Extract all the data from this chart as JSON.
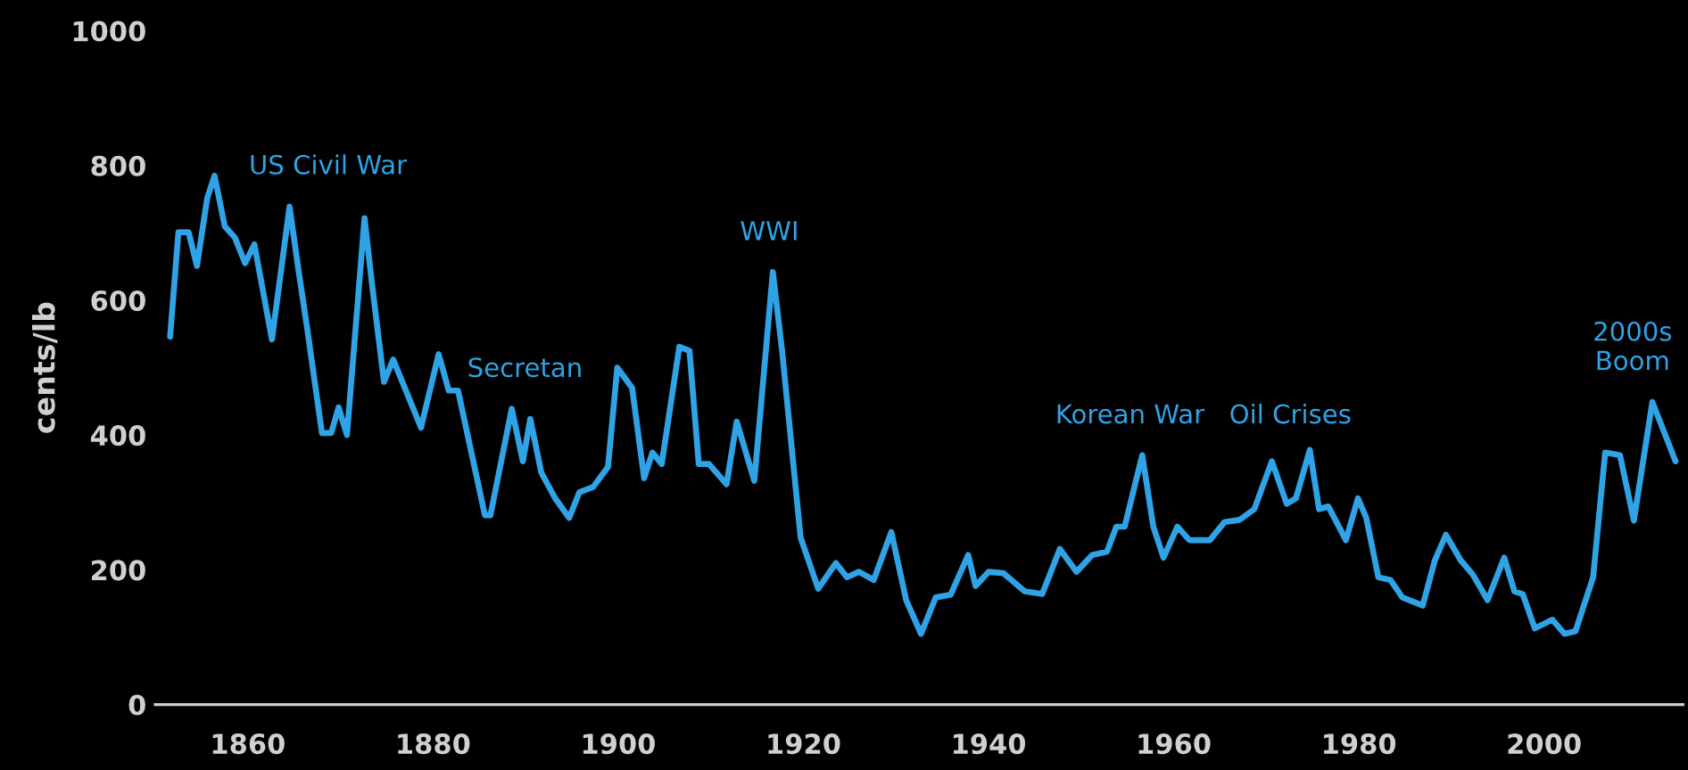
{
  "chart_data": {
    "type": "line",
    "ylabel": "cents/lb",
    "x": [
      1851.6,
      1852.5,
      1853.6,
      1854.5,
      1855.6,
      1856.4,
      1857.5,
      1858.6,
      1859.7,
      1860.7,
      1862.6,
      1864.5,
      1865.5,
      1866.4,
      1868,
      1869,
      1869.8,
      1870.7,
      1872.6,
      1873.4,
      1874.7,
      1875.7,
      1878.7,
      1880.6,
      1881.7,
      1882.7,
      1885.6,
      1886.2,
      1888.5,
      1889.7,
      1890.5,
      1891.7,
      1893.2,
      1894.7,
      1895.8,
      1897.3,
      1898.9,
      1899.9,
      1901.5,
      1902.8,
      1903.7,
      1904.7,
      1906.6,
      1907.7,
      1908.7,
      1909.8,
      1911.7,
      1912.8,
      1914.7,
      1916.7,
      1917.7,
      1919.7,
      1921.6,
      1923.5,
      1924.7,
      1926,
      1927.6,
      1929.5,
      1931.1,
      1932.7,
      1934.3,
      1935.9,
      1937.8,
      1938.6,
      1940,
      1941.6,
      1943.9,
      1945.8,
      1947.7,
      1949.5,
      1951.2,
      1952.8,
      1953.8,
      1954.7,
      1956.6,
      1957.8,
      1958.9,
      1960.4,
      1961.7,
      1963.9,
      1965.5,
      1967.1,
      1968.7,
      1970.6,
      1972.2,
      1973.2,
      1974.7,
      1975.7,
      1976.7,
      1978.6,
      1979.9,
      1980.8,
      1982.1,
      1983.4,
      1984.7,
      1986.9,
      1988.2,
      1989.4,
      1991,
      1992.3,
      1993.9,
      1995.7,
      1996.8,
      1997.7,
      1999,
      2000.9,
      2002.2,
      2003.4,
      2005.3,
      2006.6,
      2008.2,
      2009.7,
      2011.7,
      2014.2
    ],
    "series": [
      {
        "color": "#2fa3e6",
        "values": [
          546,
          701,
          701,
          651,
          751,
          785,
          710,
          693,
          655,
          683,
          542,
          739,
          642,
          559,
          403,
          403,
          441,
          400,
          722,
          625,
          479,
          512,
          411,
          520,
          466,
          466,
          281,
          281,
          439,
          361,
          424,
          344,
          306,
          277,
          315,
          323,
          353,
          500,
          470,
          336,
          374,
          357,
          531,
          525,
          357,
          357,
          327,
          420,
          332,
          642,
          525,
          248,
          172,
          210,
          189,
          197,
          185,
          256,
          155,
          105,
          159,
          163,
          222,
          176,
          197,
          195,
          168,
          164,
          231,
          197,
          222,
          227,
          264,
          264,
          370,
          264,
          218,
          264,
          244,
          244,
          271,
          274,
          290,
          361,
          298,
          306,
          378,
          290,
          294,
          244,
          306,
          277,
          189,
          185,
          159,
          147,
          214,
          252,
          214,
          193,
          155,
          218,
          168,
          164,
          113,
          126,
          105,
          109,
          189,
          374,
          370,
          273,
          449,
          361
        ]
      }
    ],
    "xlim": [
      1850,
      2015
    ],
    "xticks": [
      1860,
      1880,
      1900,
      1920,
      1940,
      1960,
      1980,
      2000
    ],
    "ylim": [
      0,
      1000
    ],
    "yticks": [
      0,
      200,
      400,
      600,
      800,
      1000
    ],
    "grid": false,
    "marker": "none",
    "line_style": "solid",
    "annotations": [
      "US Civil War",
      "Secretan",
      "WWI",
      "Korean War",
      "Oil Crises",
      "2000s\nBoom"
    ]
  }
}
